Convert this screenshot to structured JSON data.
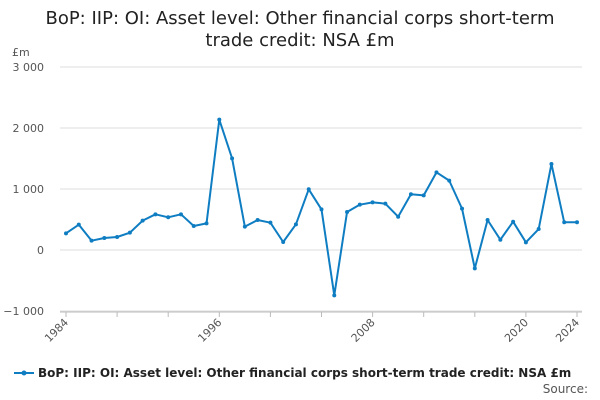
{
  "chart_data": {
    "type": "line",
    "title": "BoP: IIP: OI: Asset level: Other financial corps short-term trade credit: NSA £m",
    "ylabel": "£m",
    "xlabel": "",
    "ylim": [
      -1000,
      3000
    ],
    "yticks": [
      -1000,
      0,
      1000,
      2000,
      3000
    ],
    "ytick_labels": [
      "−1 000",
      "0",
      "1 000",
      "2 000",
      "3 000"
    ],
    "xtick_labels": [
      "1984",
      "1996",
      "2008",
      "2020",
      "2024"
    ],
    "x": [
      1984,
      1985,
      1986,
      1987,
      1988,
      1989,
      1990,
      1991,
      1992,
      1993,
      1994,
      1995,
      1996,
      1997,
      1998,
      1999,
      2000,
      2001,
      2002,
      2003,
      2004,
      2005,
      2006,
      2007,
      2008,
      2009,
      2010,
      2011,
      2012,
      2013,
      2014,
      2015,
      2016,
      2017,
      2018,
      2019,
      2020,
      2021,
      2022,
      2023,
      2024
    ],
    "series": [
      {
        "name": "BoP: IIP: OI: Asset level: Other financial corps short-term trade credit: NSA £m",
        "color": "#0f7dc2",
        "values": [
          273,
          415,
          153,
          197,
          213,
          284,
          481,
          585,
          536,
          585,
          393,
          437,
          2137,
          1503,
          383,
          492,
          448,
          131,
          421,
          995,
          665,
          -743,
          623,
          743,
          781,
          760,
          546,
          913,
          896,
          1273,
          1137,
          678,
          -301,
          492,
          169,
          464,
          126,
          344,
          1410,
          454,
          454
        ]
      }
    ],
    "grid": true,
    "legend_position": "bottom"
  },
  "source_label": "Source:"
}
